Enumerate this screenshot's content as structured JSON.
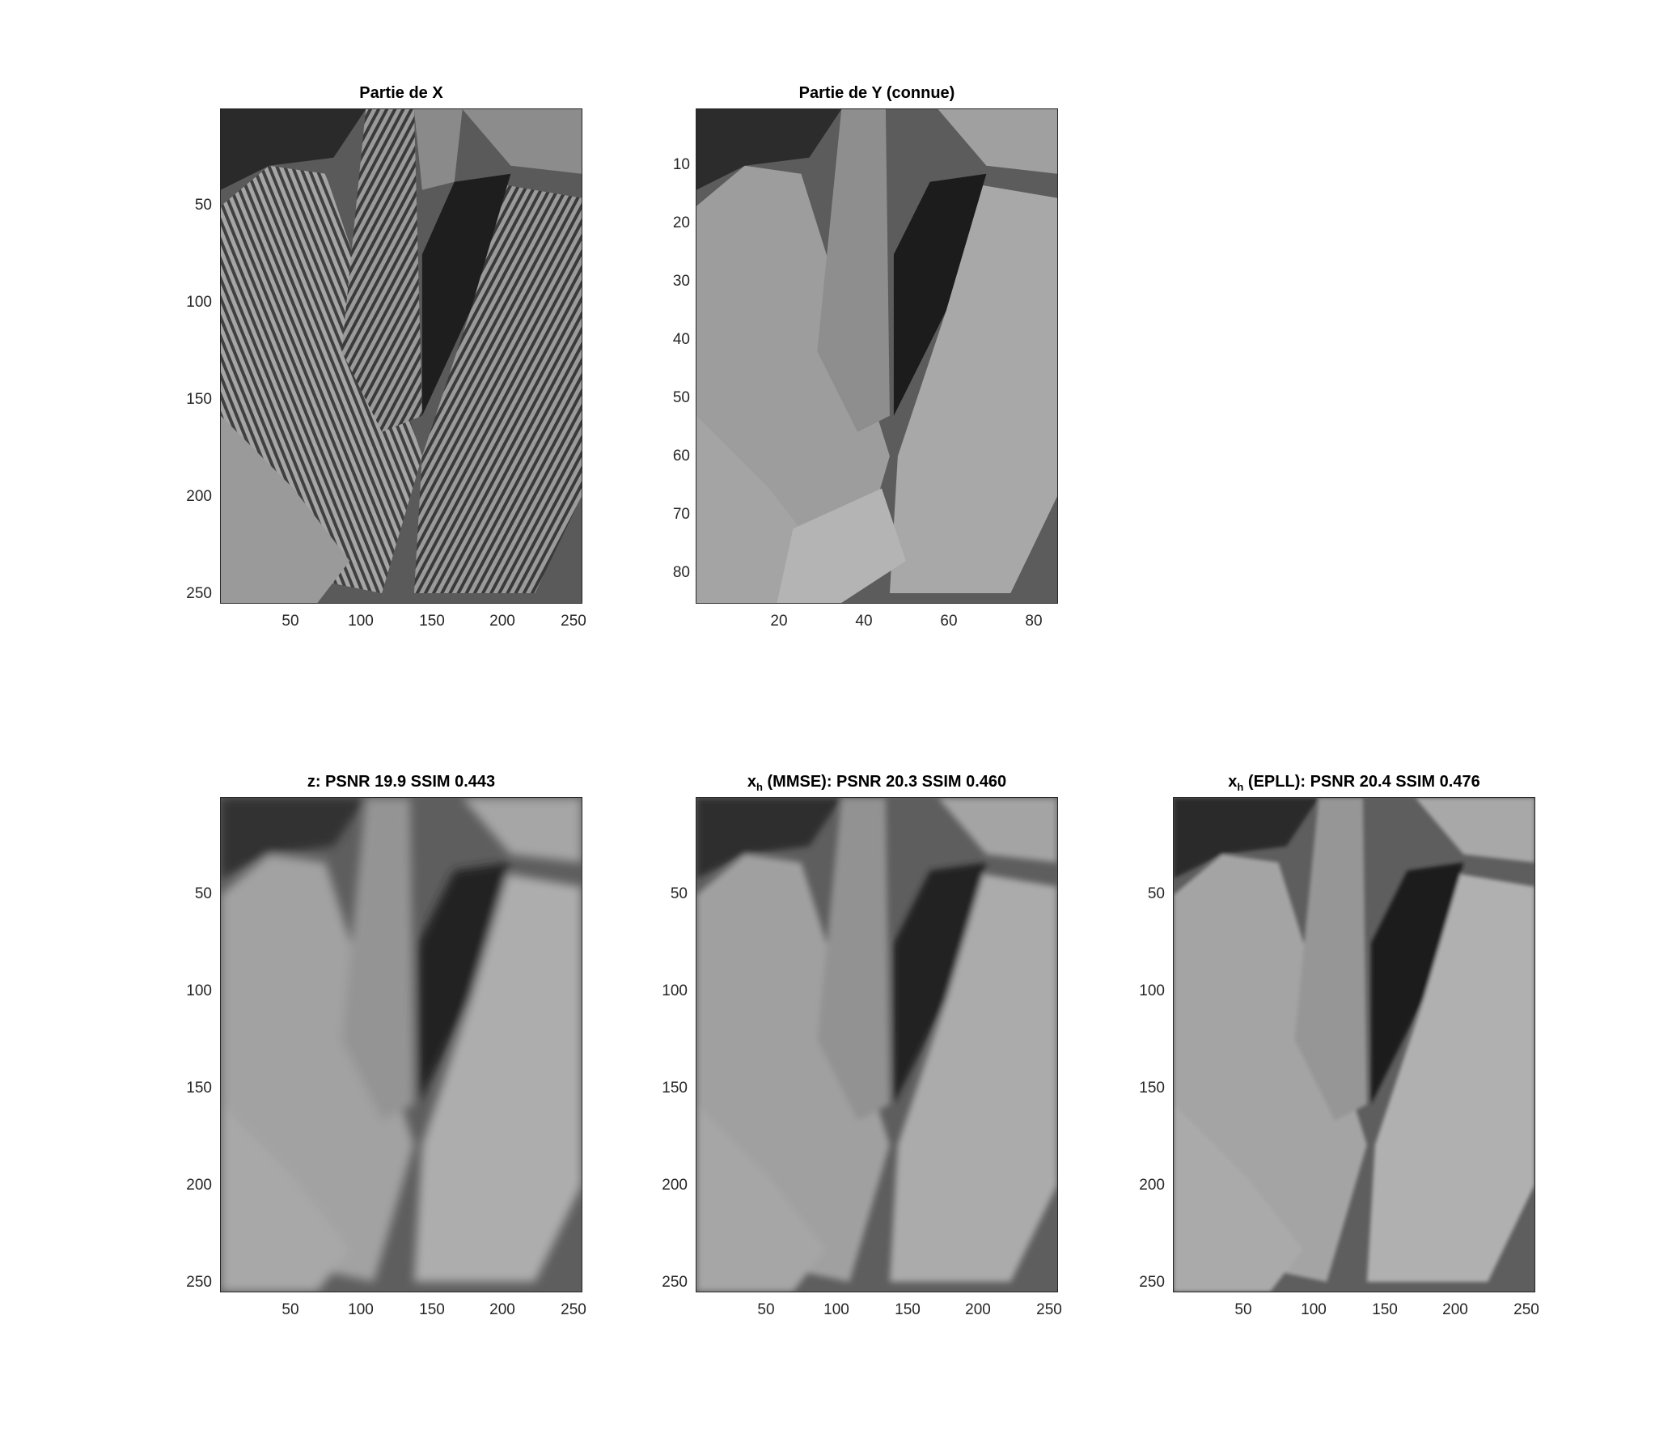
{
  "figure": {
    "panels": [
      {
        "id": "partie-x",
        "title_main": "Partie de X",
        "title_sub": "",
        "title_rest": "",
        "yticks": [
          "50",
          "100",
          "150",
          "200",
          "250"
        ],
        "xticks": [
          "50",
          "100",
          "150",
          "200",
          "250"
        ],
        "axis_range": {
          "x": [
            1,
            256
          ],
          "y": [
            1,
            256
          ]
        },
        "image_style": "striped"
      },
      {
        "id": "partie-y",
        "title_main": "Partie de Y (connue)",
        "title_sub": "",
        "title_rest": "",
        "yticks": [
          "10",
          "20",
          "30",
          "40",
          "50",
          "60",
          "70",
          "80"
        ],
        "xticks": [
          "20",
          "40",
          "60",
          "80"
        ],
        "axis_range": {
          "x": [
            1,
            86
          ],
          "y": [
            1,
            86
          ]
        },
        "image_style": "pixelated"
      },
      {
        "id": "z-panel",
        "title_main": "z: PSNR 19.9 SSIM 0.443",
        "title_sub": "",
        "title_rest": "",
        "yticks": [
          "50",
          "100",
          "150",
          "200",
          "250"
        ],
        "xticks": [
          "50",
          "100",
          "150",
          "200",
          "250"
        ],
        "axis_range": {
          "x": [
            1,
            256
          ],
          "y": [
            1,
            256
          ]
        },
        "image_style": "blurred"
      },
      {
        "id": "xh-mmse-panel",
        "title_main": "x",
        "title_sub": "h",
        "title_rest": " (MMSE): PSNR 20.3 SSIM 0.460",
        "yticks": [
          "50",
          "100",
          "150",
          "200",
          "250"
        ],
        "xticks": [
          "50",
          "100",
          "150",
          "200",
          "250"
        ],
        "axis_range": {
          "x": [
            1,
            256
          ],
          "y": [
            1,
            256
          ]
        },
        "image_style": "soft"
      },
      {
        "id": "xh-epll-panel",
        "title_main": "x",
        "title_sub": "h",
        "title_rest": " (EPLL): PSNR 20.4 SSIM 0.476",
        "yticks": [
          "50",
          "100",
          "150",
          "200",
          "250"
        ],
        "xticks": [
          "50",
          "100",
          "150",
          "200",
          "250"
        ],
        "axis_range": {
          "x": [
            1,
            256
          ],
          "y": [
            1,
            256
          ]
        },
        "image_style": "sharp"
      }
    ]
  }
}
